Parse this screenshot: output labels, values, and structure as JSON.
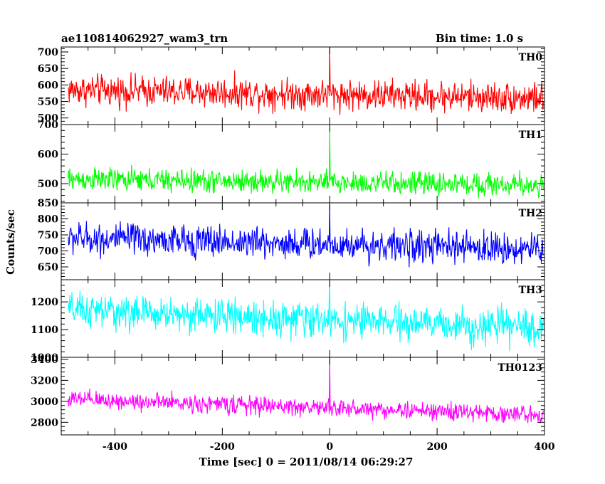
{
  "header": {
    "title": "ae110814062927_wam3_trn",
    "bin_time": "Bin time: 1.0 s"
  },
  "axes": {
    "ylabel": "Counts/sec",
    "xlabel": "Time [sec] 0 = 2011/08/14 06:29:27"
  },
  "chart_data": {
    "type": "line",
    "title": "ae110814062927_wam3_trn",
    "xlabel": "Time [sec] 0 = 2011/08/14 06:29:27",
    "ylabel": "Counts/sec",
    "xlim": [
      -500,
      400
    ],
    "xticks": [
      -400,
      -200,
      0,
      200,
      400
    ],
    "panels": [
      {
        "name": "TH0",
        "color": "#ff0000",
        "ylim": [
          480,
          715
        ],
        "yticks": [
          500,
          550,
          600,
          650,
          700
        ],
        "base_start": 585,
        "base_end": 560,
        "noise": 30,
        "spike_value": 715
      },
      {
        "name": "TH1",
        "color": "#00ff00",
        "ylim": [
          435,
          700
        ],
        "yticks": [
          500,
          600,
          700
        ],
        "base_start": 515,
        "base_end": 495,
        "noise": 25,
        "spike_value": 690
      },
      {
        "name": "TH2",
        "color": "#0000ff",
        "ylim": [
          610,
          850
        ],
        "yticks": [
          650,
          700,
          750,
          800,
          850
        ],
        "base_start": 740,
        "base_end": 705,
        "noise": 32,
        "spike_value": 845
      },
      {
        "name": "TH3",
        "color": "#00ffff",
        "ylim": [
          1000,
          1280
        ],
        "yticks": [
          1000,
          1100,
          1200
        ],
        "base_start": 1170,
        "base_end": 1105,
        "noise": 40,
        "spike_value": 1280
      },
      {
        "name": "TH0123",
        "color": "#ff00ff",
        "ylim": [
          2680,
          3420
        ],
        "yticks": [
          2800,
          3000,
          3200,
          3400
        ],
        "base_start": 3020,
        "base_end": 2870,
        "noise": 55,
        "spike_value": 3420
      }
    ],
    "grid": false
  }
}
